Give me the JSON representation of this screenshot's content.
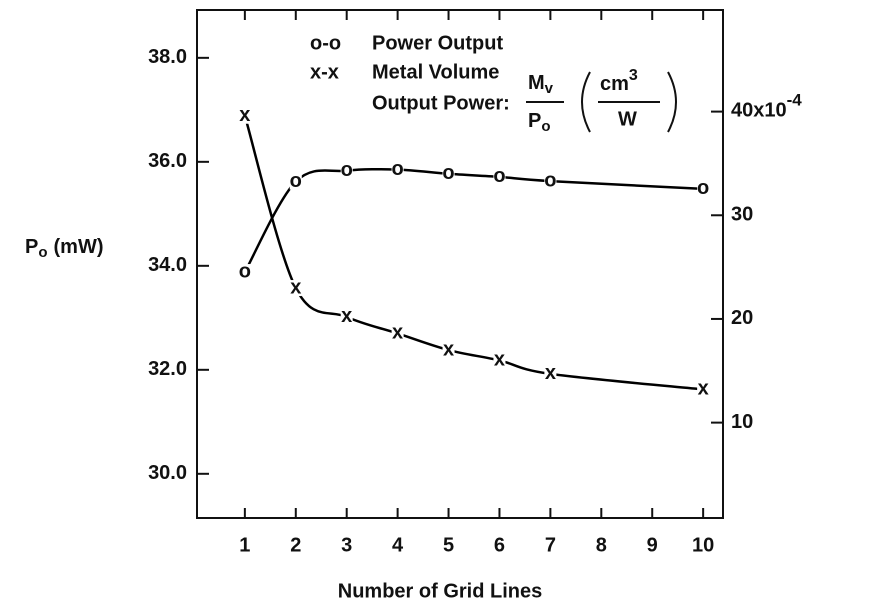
{
  "chart_data": {
    "type": "line",
    "xlabel": "Number of Grid Lines",
    "ylabel": {
      "main": "P",
      "sub": "o",
      "unit": "(mW)"
    },
    "x": [
      1,
      2,
      3,
      4,
      5,
      6,
      7,
      10
    ],
    "xlim": [
      0.06,
      10.39
    ],
    "xticks": [
      1,
      2,
      3,
      4,
      5,
      6,
      7,
      8,
      9,
      10
    ],
    "ylim": [
      29.15,
      38.92
    ],
    "yticks": [
      {
        "value": 30,
        "label": "30.0"
      },
      {
        "value": 32,
        "label": "32.0"
      },
      {
        "value": 34,
        "label": "34.0"
      },
      {
        "value": 36,
        "label": "36.0"
      },
      {
        "value": 38,
        "label": "38.0"
      }
    ],
    "y2lim": [
      0.8,
      49.8
    ],
    "y2ticks": [
      10,
      20,
      30,
      {
        "value": 40,
        "label": "40x10",
        "exponent": "-4"
      }
    ],
    "series": [
      {
        "name": "Power Output",
        "symbol": "o-o",
        "marker": "o",
        "color": "#000000",
        "values": [
          33.88,
          35.62,
          35.83,
          35.85,
          35.77,
          35.71,
          35.63,
          35.48
        ]
      },
      {
        "name": "Metal Volume",
        "symbol": "x-x",
        "marker": "x",
        "color": "#000000",
        "axis": "y2",
        "values": [
          39.6,
          22.98,
          20.2,
          18.6,
          17.0,
          16.0,
          14.7,
          13.2
        ]
      }
    ],
    "y2_label": {
      "prefix": "Output Power:",
      "num": "M",
      "num_sub": "v",
      "den": "P",
      "den_sub": "o",
      "unit_num": "cm",
      "unit_exp": "3",
      "unit_den": "W"
    }
  }
}
